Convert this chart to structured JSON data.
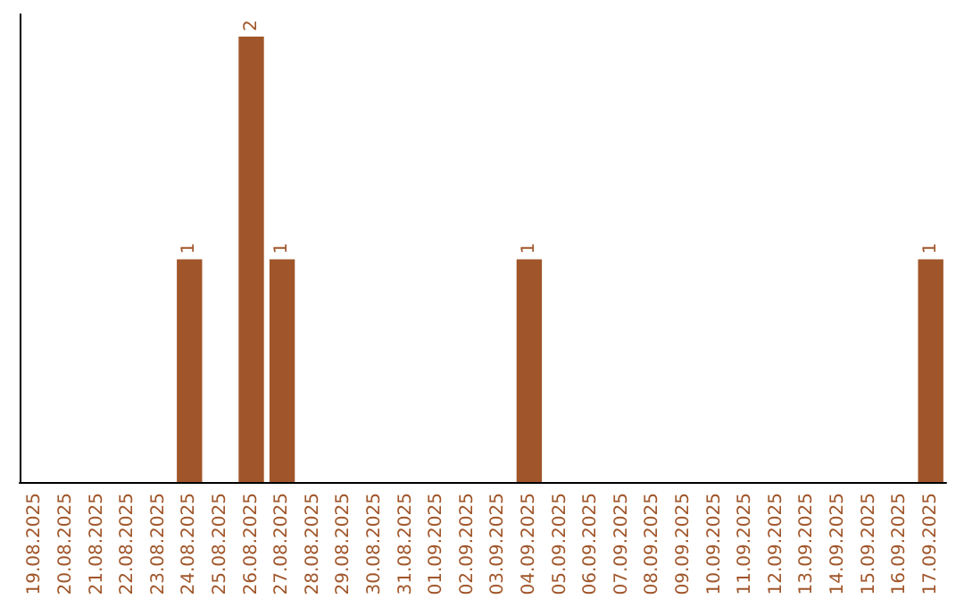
{
  "chart_data": {
    "type": "bar",
    "categories": [
      "19.08.2025",
      "20.08.2025",
      "21.08.2025",
      "22.08.2025",
      "23.08.2025",
      "24.08.2025",
      "25.08.2025",
      "26.08.2025",
      "27.08.2025",
      "28.08.2025",
      "29.08.2025",
      "30.08.2025",
      "31.08.2025",
      "01.09.2025",
      "02.09.2025",
      "03.09.2025",
      "04.09.2025",
      "05.09.2025",
      "06.09.2025",
      "07.09.2025",
      "08.09.2025",
      "09.09.2025",
      "10.09.2025",
      "11.09.2025",
      "12.09.2025",
      "13.09.2025",
      "14.09.2025",
      "15.09.2025",
      "16.09.2025",
      "17.09.2025"
    ],
    "values": [
      0,
      0,
      0,
      0,
      0,
      1,
      0,
      2,
      1,
      0,
      0,
      0,
      0,
      0,
      0,
      0,
      1,
      0,
      0,
      0,
      0,
      0,
      0,
      0,
      0,
      0,
      0,
      0,
      0,
      1
    ],
    "value_labels": [
      null,
      null,
      null,
      null,
      null,
      "1",
      null,
      "2",
      "1",
      null,
      null,
      null,
      null,
      null,
      null,
      null,
      "1",
      null,
      null,
      null,
      null,
      null,
      null,
      null,
      null,
      null,
      null,
      null,
      null,
      "1"
    ],
    "color": "#a0562a",
    "grid": false
  }
}
